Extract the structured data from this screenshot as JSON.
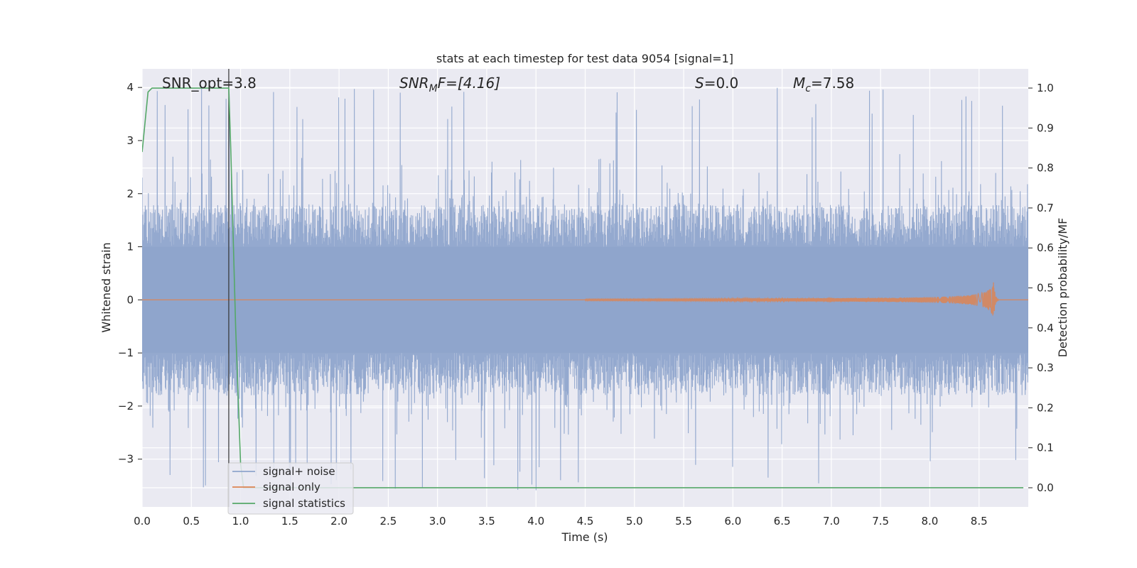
{
  "chart_data": {
    "type": "line",
    "title": "stats at each timestep for test data 9054 [signal=1]",
    "xlabel": "Time (s)",
    "ylabel": "Whitened strain",
    "y2label": "Detection probability/MF",
    "xlim": [
      0.0,
      9.0
    ],
    "ylim": [
      -3.9,
      4.35
    ],
    "y2lim": [
      -0.048,
      1.048
    ],
    "x_ticks": [
      "0.0",
      "0.5",
      "1.0",
      "1.5",
      "2.0",
      "2.5",
      "3.0",
      "3.5",
      "4.0",
      "4.5",
      "5.0",
      "5.5",
      "6.0",
      "6.5",
      "7.0",
      "7.5",
      "8.0",
      "8.5"
    ],
    "y_ticks": [
      "4",
      "3",
      "2",
      "1",
      "0",
      "−1",
      "−2",
      "−3"
    ],
    "y2_ticks": [
      "1.0",
      "0.9",
      "0.8",
      "0.7",
      "0.6",
      "0.5",
      "0.4",
      "0.3",
      "0.2",
      "0.1",
      "0.0"
    ],
    "grid": true,
    "legend_position": "lower-left",
    "annotations": {
      "snr_opt": "SNR_opt=3.8",
      "snr_mf_main": "SNR",
      "snr_mf_sub": "M",
      "snr_mf_tail": "F=[4.16]",
      "s_main": "S",
      "s_tail": "=0.0",
      "mc_main": "M",
      "mc_sub": "c",
      "mc_tail": "=7.58"
    },
    "series": [
      {
        "name": "signal+ noise",
        "color": "#8fa5cc",
        "axis": "left",
        "noise_band": [
          -1.0,
          1.0
        ],
        "peak_range": [
          -3.6,
          4.0
        ]
      },
      {
        "name": "signal only",
        "color": "#dd8452",
        "axis": "left",
        "chirp_start": 4.5,
        "chirp_peak_time": 8.65,
        "chirp_peak_amplitude": 0.35
      },
      {
        "name": "signal statistics",
        "color": "#55a868",
        "axis": "right",
        "points": [
          [
            0.0,
            0.84
          ],
          [
            0.06,
            0.99
          ],
          [
            0.1,
            1.0
          ],
          [
            0.5,
            1.0
          ],
          [
            0.88,
            1.0
          ],
          [
            0.9,
            0.85
          ],
          [
            0.95,
            0.4
          ],
          [
            1.0,
            0.06
          ],
          [
            1.03,
            0.0
          ],
          [
            8.95,
            0.0
          ]
        ]
      }
    ],
    "vline_x": 0.88
  }
}
